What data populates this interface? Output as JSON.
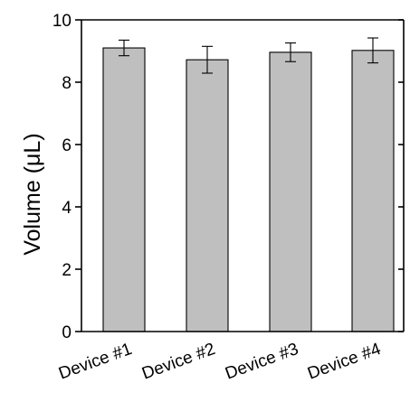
{
  "chart_data": {
    "type": "bar",
    "categories": [
      "Device #1",
      "Device #2",
      "Device #3",
      "Device #4"
    ],
    "values": [
      9.1,
      8.72,
      8.96,
      9.02
    ],
    "errors": [
      0.25,
      0.43,
      0.3,
      0.4
    ],
    "title": "",
    "xlabel": "",
    "ylabel": "Volume (μL)",
    "ylim": [
      0,
      10
    ],
    "yticks": [
      "0",
      "2",
      "4",
      "6",
      "8",
      "10"
    ],
    "bar_color": "#bfbfbf",
    "grid": false
  }
}
